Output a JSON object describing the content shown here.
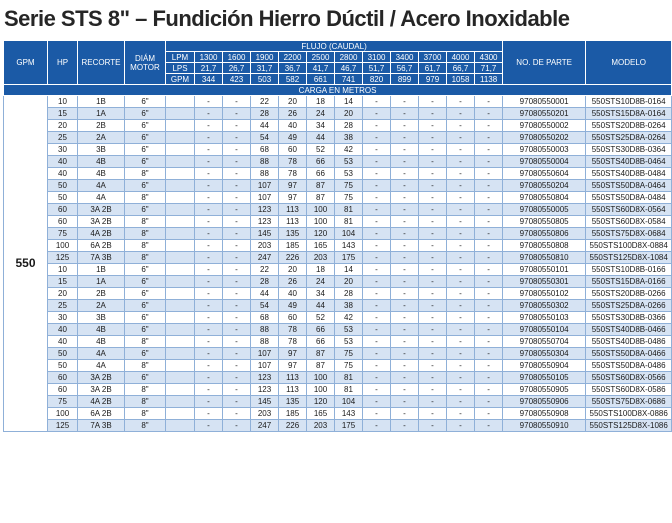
{
  "title": "Serie STS 8\" – Fundición Hierro Dúctil / Acero Inoxidable",
  "header": {
    "gpm": "GPM",
    "hp": "HP",
    "recorte": "RECORTE",
    "diam_motor_1": "DIÁM",
    "diam_motor_2": "MOTOR",
    "flujo": "FLUJO (CAUDAL)",
    "carga": "CARGA EN METROS",
    "part": "NO. DE PARTE",
    "modelo": "MODELO",
    "lpm_label": "LPM",
    "lps_label": "LPS",
    "gpm_label": "GPM",
    "lpm": [
      "1300",
      "1600",
      "1900",
      "2200",
      "2500",
      "2800",
      "3100",
      "3400",
      "3700",
      "4000",
      "4300"
    ],
    "lps": [
      "21,7",
      "26,7",
      "31,7",
      "36,7",
      "41,7",
      "46,7",
      "51,7",
      "56,7",
      "61,7",
      "66,7",
      "71,7"
    ],
    "gpm_vals": [
      "344",
      "423",
      "503",
      "582",
      "661",
      "741",
      "820",
      "899",
      "979",
      "1058",
      "1138"
    ]
  },
  "gpm_group": "550",
  "rows": [
    {
      "hp": "10",
      "recorte": "1B",
      "motor": "6\"",
      "heads": [
        "-",
        "-",
        "22",
        "20",
        "18",
        "14",
        "-",
        "-",
        "-",
        "-",
        "-"
      ],
      "part": "97080550001",
      "modelo": "550STS10D8B-0164"
    },
    {
      "hp": "15",
      "recorte": "1A",
      "motor": "6\"",
      "heads": [
        "-",
        "-",
        "28",
        "26",
        "24",
        "20",
        "-",
        "-",
        "-",
        "-",
        "-"
      ],
      "part": "97080550201",
      "modelo": "550STS15D8A-0164"
    },
    {
      "hp": "20",
      "recorte": "2B",
      "motor": "6\"",
      "heads": [
        "-",
        "-",
        "44",
        "40",
        "34",
        "28",
        "-",
        "-",
        "-",
        "-",
        "-"
      ],
      "part": "97080550002",
      "modelo": "550STS20D8B-0264"
    },
    {
      "hp": "25",
      "recorte": "2A",
      "motor": "6\"",
      "heads": [
        "-",
        "-",
        "54",
        "49",
        "44",
        "38",
        "-",
        "-",
        "-",
        "-",
        "-"
      ],
      "part": "97080550202",
      "modelo": "550STS25D8A-0264"
    },
    {
      "hp": "30",
      "recorte": "3B",
      "motor": "6\"",
      "heads": [
        "-",
        "-",
        "68",
        "60",
        "52",
        "42",
        "-",
        "-",
        "-",
        "-",
        "-"
      ],
      "part": "97080550003",
      "modelo": "550STS30D8B-0364"
    },
    {
      "hp": "40",
      "recorte": "4B",
      "motor": "6\"",
      "heads": [
        "-",
        "-",
        "88",
        "78",
        "66",
        "53",
        "-",
        "-",
        "-",
        "-",
        "-"
      ],
      "part": "97080550004",
      "modelo": "550STS40D8B-0464"
    },
    {
      "hp": "40",
      "recorte": "4B",
      "motor": "8\"",
      "heads": [
        "-",
        "-",
        "88",
        "78",
        "66",
        "53",
        "-",
        "-",
        "-",
        "-",
        "-"
      ],
      "part": "97080550604",
      "modelo": "550STS40D8B-0484"
    },
    {
      "hp": "50",
      "recorte": "4A",
      "motor": "6\"",
      "heads": [
        "-",
        "-",
        "107",
        "97",
        "87",
        "75",
        "-",
        "-",
        "-",
        "-",
        "-"
      ],
      "part": "97080550204",
      "modelo": "550STS50D8A-0464"
    },
    {
      "hp": "50",
      "recorte": "4A",
      "motor": "8\"",
      "heads": [
        "-",
        "-",
        "107",
        "97",
        "87",
        "75",
        "-",
        "-",
        "-",
        "-",
        "-"
      ],
      "part": "97080550804",
      "modelo": "550STS50D8A-0484"
    },
    {
      "hp": "60",
      "recorte": "3A 2B",
      "motor": "6\"",
      "heads": [
        "-",
        "-",
        "123",
        "113",
        "100",
        "81",
        "-",
        "-",
        "-",
        "-",
        "-"
      ],
      "part": "97080550005",
      "modelo": "550STS60D8X-0564"
    },
    {
      "hp": "60",
      "recorte": "3A 2B",
      "motor": "8\"",
      "heads": [
        "-",
        "-",
        "123",
        "113",
        "100",
        "81",
        "-",
        "-",
        "-",
        "-",
        "-"
      ],
      "part": "97080550805",
      "modelo": "550STS60D8X-0584"
    },
    {
      "hp": "75",
      "recorte": "4A 2B",
      "motor": "8\"",
      "heads": [
        "-",
        "-",
        "145",
        "135",
        "120",
        "104",
        "-",
        "-",
        "-",
        "-",
        "-"
      ],
      "part": "97080550806",
      "modelo": "550STS75D8X-0684"
    },
    {
      "hp": "100",
      "recorte": "6A 2B",
      "motor": "8\"",
      "heads": [
        "-",
        "-",
        "203",
        "185",
        "165",
        "143",
        "-",
        "-",
        "-",
        "-",
        "-"
      ],
      "part": "97080550808",
      "modelo": "550STS100D8X-0884"
    },
    {
      "hp": "125",
      "recorte": "7A 3B",
      "motor": "8\"",
      "heads": [
        "-",
        "-",
        "247",
        "226",
        "203",
        "175",
        "-",
        "-",
        "-",
        "-",
        "-"
      ],
      "part": "97080550810",
      "modelo": "550STS125D8X-1084"
    },
    {
      "hp": "10",
      "recorte": "1B",
      "motor": "6\"",
      "heads": [
        "-",
        "-",
        "22",
        "20",
        "18",
        "14",
        "-",
        "-",
        "-",
        "-",
        "-"
      ],
      "part": "97080550101",
      "modelo": "550STS10D8B-0166"
    },
    {
      "hp": "15",
      "recorte": "1A",
      "motor": "6\"",
      "heads": [
        "-",
        "-",
        "28",
        "26",
        "24",
        "20",
        "-",
        "-",
        "-",
        "-",
        "-"
      ],
      "part": "97080550301",
      "modelo": "550STS15D8A-0166"
    },
    {
      "hp": "20",
      "recorte": "2B",
      "motor": "6\"",
      "heads": [
        "-",
        "-",
        "44",
        "40",
        "34",
        "28",
        "-",
        "-",
        "-",
        "-",
        "-"
      ],
      "part": "97080550102",
      "modelo": "550STS20D8B-0266"
    },
    {
      "hp": "25",
      "recorte": "2A",
      "motor": "6\"",
      "heads": [
        "-",
        "-",
        "54",
        "49",
        "44",
        "38",
        "-",
        "-",
        "-",
        "-",
        "-"
      ],
      "part": "97080550302",
      "modelo": "550STS25D8A-0266"
    },
    {
      "hp": "30",
      "recorte": "3B",
      "motor": "6\"",
      "heads": [
        "-",
        "-",
        "68",
        "60",
        "52",
        "42",
        "-",
        "-",
        "-",
        "-",
        "-"
      ],
      "part": "97080550103",
      "modelo": "550STS30D8B-0366"
    },
    {
      "hp": "40",
      "recorte": "4B",
      "motor": "6\"",
      "heads": [
        "-",
        "-",
        "88",
        "78",
        "66",
        "53",
        "-",
        "-",
        "-",
        "-",
        "-"
      ],
      "part": "97080550104",
      "modelo": "550STS40D8B-0466"
    },
    {
      "hp": "40",
      "recorte": "4B",
      "motor": "8\"",
      "heads": [
        "-",
        "-",
        "88",
        "78",
        "66",
        "53",
        "-",
        "-",
        "-",
        "-",
        "-"
      ],
      "part": "97080550704",
      "modelo": "550STS40D8B-0486"
    },
    {
      "hp": "50",
      "recorte": "4A",
      "motor": "6\"",
      "heads": [
        "-",
        "-",
        "107",
        "97",
        "87",
        "75",
        "-",
        "-",
        "-",
        "-",
        "-"
      ],
      "part": "97080550304",
      "modelo": "550STS50D8A-0466"
    },
    {
      "hp": "50",
      "recorte": "4A",
      "motor": "8\"",
      "heads": [
        "-",
        "-",
        "107",
        "97",
        "87",
        "75",
        "-",
        "-",
        "-",
        "-",
        "-"
      ],
      "part": "97080550904",
      "modelo": "550STS50D8A-0486"
    },
    {
      "hp": "60",
      "recorte": "3A 2B",
      "motor": "6\"",
      "heads": [
        "-",
        "-",
        "123",
        "113",
        "100",
        "81",
        "-",
        "-",
        "-",
        "-",
        "-"
      ],
      "part": "97080550105",
      "modelo": "550STS60D8X-0566"
    },
    {
      "hp": "60",
      "recorte": "3A 2B",
      "motor": "8\"",
      "heads": [
        "-",
        "-",
        "123",
        "113",
        "100",
        "81",
        "-",
        "-",
        "-",
        "-",
        "-"
      ],
      "part": "97080550905",
      "modelo": "550STS60D8X-0586"
    },
    {
      "hp": "75",
      "recorte": "4A 2B",
      "motor": "8\"",
      "heads": [
        "-",
        "-",
        "145",
        "135",
        "120",
        "104",
        "-",
        "-",
        "-",
        "-",
        "-"
      ],
      "part": "97080550906",
      "modelo": "550STS75D8X-0686"
    },
    {
      "hp": "100",
      "recorte": "6A 2B",
      "motor": "8\"",
      "heads": [
        "-",
        "-",
        "203",
        "185",
        "165",
        "143",
        "-",
        "-",
        "-",
        "-",
        "-"
      ],
      "part": "97080550908",
      "modelo": "550STS100D8X-0886"
    },
    {
      "hp": "125",
      "recorte": "7A 3B",
      "motor": "8\"",
      "heads": [
        "-",
        "-",
        "247",
        "226",
        "203",
        "175",
        "-",
        "-",
        "-",
        "-",
        "-"
      ],
      "part": "97080550910",
      "modelo": "550STS125D8X-1086"
    }
  ]
}
